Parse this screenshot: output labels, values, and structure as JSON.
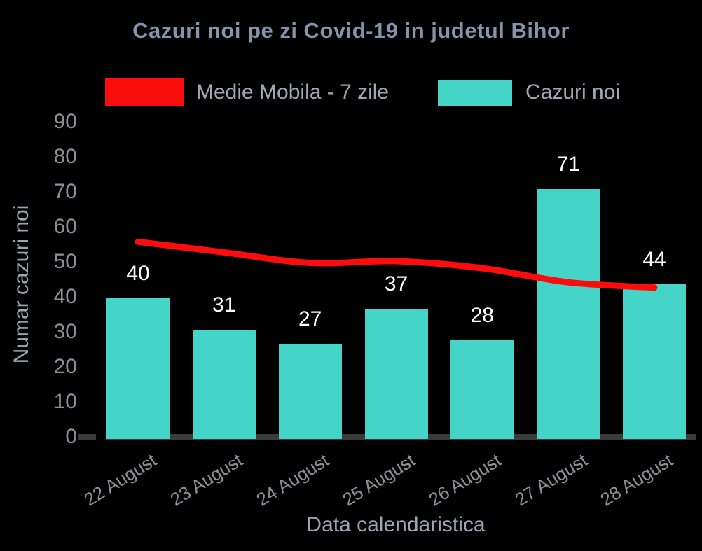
{
  "chart_data": {
    "type": "bar",
    "title": "Cazuri noi pe zi Covid-19 in judetul Bihor",
    "xlabel": "Data calendaristica",
    "ylabel": "Numar cazuri noi",
    "categories": [
      "22 August",
      "23 August",
      "24 August",
      "25 August",
      "26 August",
      "27 August",
      "28 August"
    ],
    "series": [
      {
        "name": "Cazuri noi",
        "type": "bar",
        "color": "#45d4c8",
        "values": [
          40,
          31,
          27,
          37,
          28,
          71,
          44
        ]
      },
      {
        "name": "Medie Mobila - 7 zile",
        "type": "line",
        "color": "#fb0d0d",
        "values": [
          56,
          53,
          50,
          50.5,
          48.5,
          44.5,
          43
        ]
      }
    ],
    "bar_value_labels": [
      40,
      31,
      27,
      37,
      28,
      71,
      44
    ],
    "ylim": [
      0,
      90
    ],
    "yticks": [
      0,
      10,
      20,
      30,
      40,
      50,
      60,
      70,
      80,
      90
    ],
    "grid": false,
    "legend_position": "top",
    "background_color": "#000000",
    "title_color": "#8494ab",
    "tick_label_color": "#8d9095",
    "axis_title_color": "#9ba6b4",
    "bar_label_color": "#ffffff",
    "axis_line_color": "#3b3b3b"
  }
}
